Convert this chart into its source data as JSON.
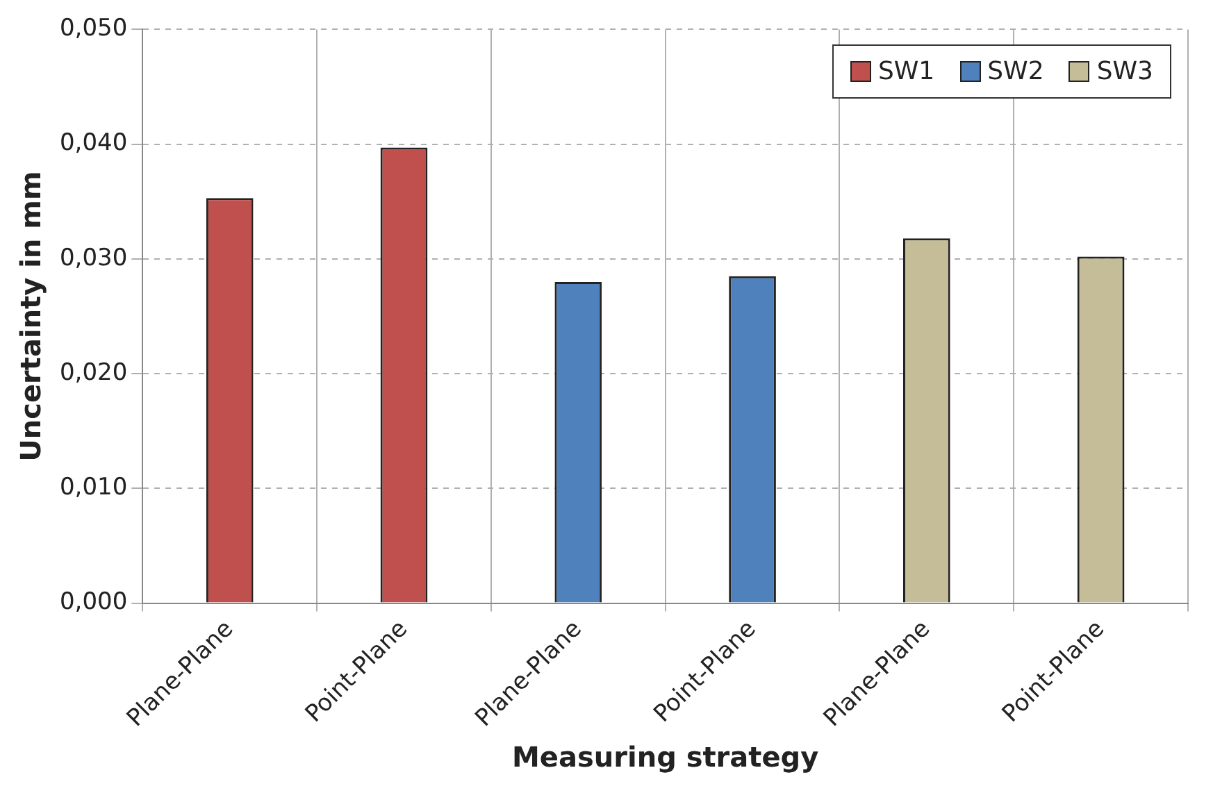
{
  "chart_data": {
    "type": "bar",
    "xlabel": "Measuring strategy",
    "ylabel": "Uncertainty in mm",
    "categories": [
      "Plane-Plane",
      "Point-Plane",
      "Plane-Plane",
      "Point-Plane",
      "Plane-Plane",
      "Point-Plane"
    ],
    "series": [
      {
        "name": "SW1",
        "color": "#c0504d",
        "values": [
          0.0353,
          0.0397,
          null,
          null,
          null,
          null
        ]
      },
      {
        "name": "SW2",
        "color": "#4f81bd",
        "values": [
          null,
          null,
          0.028,
          0.0285,
          null,
          null
        ]
      },
      {
        "name": "SW3",
        "color": "#c4bd97",
        "values": [
          null,
          null,
          null,
          null,
          0.0318,
          0.0302
        ]
      }
    ],
    "ylim": [
      0,
      0.05
    ],
    "yticks": [
      {
        "value": 0,
        "label": "0,000"
      },
      {
        "value": 0.01,
        "label": "0,010"
      },
      {
        "value": 0.02,
        "label": "0,020"
      },
      {
        "value": 0.03,
        "label": "0,030"
      },
      {
        "value": 0.04,
        "label": "0,040"
      },
      {
        "value": 0.05,
        "label": "0,050"
      }
    ],
    "grid": true,
    "legend": "top right"
  }
}
